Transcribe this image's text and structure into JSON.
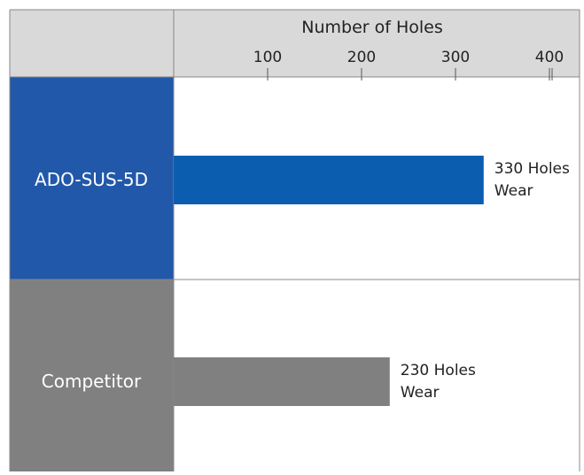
{
  "chart_data": {
    "type": "bar",
    "orientation": "horizontal",
    "xlabel": "Number of Holes",
    "xticks": [
      100,
      200,
      300,
      400
    ],
    "xlim": [
      0,
      440
    ],
    "categories": [
      "ADO-SUS-5D",
      "Competitor"
    ],
    "values": [
      330,
      230
    ],
    "data_labels": [
      [
        "330 Holes",
        "Wear"
      ],
      [
        "230 Holes",
        "Wear"
      ]
    ],
    "colors": {
      "bars": [
        "#0b5db0",
        "#808080"
      ],
      "category_panels": [
        "#2258aa",
        "#808080"
      ],
      "header": "#d9d9d9",
      "grid": "#888888"
    },
    "grid": false
  }
}
